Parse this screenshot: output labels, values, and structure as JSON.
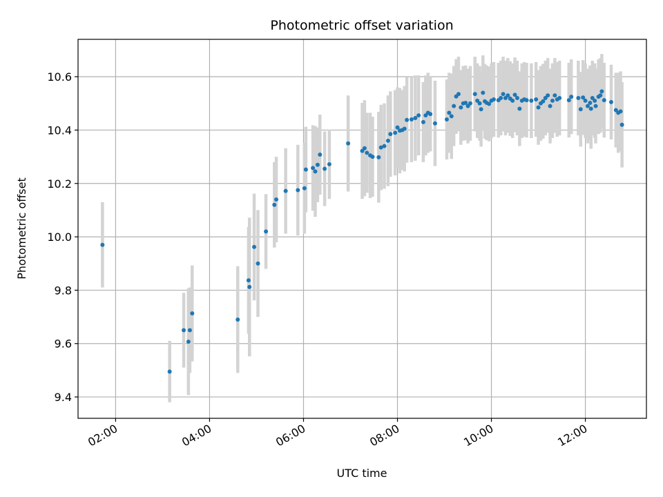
{
  "chart_data": {
    "type": "scatter",
    "title": "Photometric offset variation",
    "xlabel": "UTC time",
    "ylabel": "Photometric offset",
    "xlim": [
      1.2,
      13.3
    ],
    "ylim": [
      9.32,
      10.74
    ],
    "x_ticks": [
      {
        "value": 2,
        "label": "02:00"
      },
      {
        "value": 4,
        "label": "04:00"
      },
      {
        "value": 6,
        "label": "06:00"
      },
      {
        "value": 8,
        "label": "08:00"
      },
      {
        "value": 10,
        "label": "10:00"
      },
      {
        "value": 12,
        "label": "12:00"
      }
    ],
    "y_ticks": [
      {
        "value": 9.4,
        "label": "9.4"
      },
      {
        "value": 9.6,
        "label": "9.6"
      },
      {
        "value": 9.8,
        "label": "9.8"
      },
      {
        "value": 10.0,
        "label": "10.0"
      },
      {
        "value": 10.2,
        "label": "10.2"
      },
      {
        "value": 10.4,
        "label": "10.4"
      },
      {
        "value": 10.6,
        "label": "10.6"
      }
    ],
    "grid": true,
    "colors": {
      "points": "#1f77b4",
      "errorbars": "#d3d3d3"
    },
    "points_hours_value_error": [
      [
        1.72,
        9.97,
        0.16
      ],
      [
        3.15,
        9.495,
        0.115
      ],
      [
        3.45,
        9.65,
        0.14
      ],
      [
        3.55,
        9.607,
        0.2
      ],
      [
        3.58,
        9.65,
        0.16
      ],
      [
        3.63,
        9.713,
        0.18
      ],
      [
        4.6,
        9.69,
        0.2
      ],
      [
        4.83,
        9.837,
        0.2
      ],
      [
        4.85,
        9.812,
        0.26
      ],
      [
        4.95,
        9.962,
        0.2
      ],
      [
        5.03,
        9.9,
        0.2
      ],
      [
        5.2,
        10.02,
        0.14
      ],
      [
        5.38,
        10.12,
        0.16
      ],
      [
        5.42,
        10.14,
        0.16
      ],
      [
        5.62,
        10.172,
        0.16
      ],
      [
        5.88,
        10.175,
        0.17
      ],
      [
        6.02,
        10.182,
        0.17
      ],
      [
        6.05,
        10.252,
        0.16
      ],
      [
        6.2,
        10.258,
        0.16
      ],
      [
        6.25,
        10.245,
        0.17
      ],
      [
        6.3,
        10.27,
        0.14
      ],
      [
        6.35,
        10.308,
        0.15
      ],
      [
        6.45,
        10.255,
        0.14
      ],
      [
        6.55,
        10.272,
        0.13
      ],
      [
        6.95,
        10.35,
        0.18
      ],
      [
        7.25,
        10.322,
        0.18
      ],
      [
        7.3,
        10.332,
        0.18
      ],
      [
        7.35,
        10.315,
        0.15
      ],
      [
        7.42,
        10.305,
        0.16
      ],
      [
        7.47,
        10.3,
        0.15
      ],
      [
        7.6,
        10.298,
        0.17
      ],
      [
        7.65,
        10.335,
        0.16
      ],
      [
        7.72,
        10.34,
        0.16
      ],
      [
        7.8,
        10.36,
        0.17
      ],
      [
        7.85,
        10.385,
        0.16
      ],
      [
        7.95,
        10.39,
        0.16
      ],
      [
        8.0,
        10.41,
        0.15
      ],
      [
        8.05,
        10.398,
        0.16
      ],
      [
        8.1,
        10.4,
        0.15
      ],
      [
        8.15,
        10.405,
        0.16
      ],
      [
        8.2,
        10.438,
        0.16
      ],
      [
        8.3,
        10.44,
        0.16
      ],
      [
        8.38,
        10.445,
        0.16
      ],
      [
        8.45,
        10.455,
        0.15
      ],
      [
        8.55,
        10.43,
        0.15
      ],
      [
        8.6,
        10.455,
        0.15
      ],
      [
        8.65,
        10.465,
        0.15
      ],
      [
        8.7,
        10.46,
        0.14
      ],
      [
        8.8,
        10.425,
        0.16
      ],
      [
        9.05,
        10.44,
        0.15
      ],
      [
        9.1,
        10.465,
        0.15
      ],
      [
        9.15,
        10.452,
        0.16
      ],
      [
        9.2,
        10.49,
        0.15
      ],
      [
        9.25,
        10.526,
        0.14
      ],
      [
        9.3,
        10.535,
        0.14
      ],
      [
        9.35,
        10.485,
        0.14
      ],
      [
        9.4,
        10.5,
        0.14
      ],
      [
        9.45,
        10.502,
        0.14
      ],
      [
        9.5,
        10.49,
        0.14
      ],
      [
        9.55,
        10.5,
        0.14
      ],
      [
        9.65,
        10.535,
        0.14
      ],
      [
        9.7,
        10.51,
        0.14
      ],
      [
        9.75,
        10.5,
        0.14
      ],
      [
        9.78,
        10.478,
        0.14
      ],
      [
        9.82,
        10.54,
        0.14
      ],
      [
        9.86,
        10.508,
        0.14
      ],
      [
        9.9,
        10.502,
        0.14
      ],
      [
        9.95,
        10.498,
        0.14
      ],
      [
        10.0,
        10.51,
        0.14
      ],
      [
        10.05,
        10.515,
        0.14
      ],
      [
        10.15,
        10.512,
        0.14
      ],
      [
        10.2,
        10.52,
        0.14
      ],
      [
        10.25,
        10.535,
        0.14
      ],
      [
        10.3,
        10.52,
        0.14
      ],
      [
        10.35,
        10.53,
        0.14
      ],
      [
        10.4,
        10.518,
        0.14
      ],
      [
        10.45,
        10.51,
        0.14
      ],
      [
        10.5,
        10.532,
        0.14
      ],
      [
        10.55,
        10.52,
        0.14
      ],
      [
        10.6,
        10.48,
        0.14
      ],
      [
        10.65,
        10.51,
        0.14
      ],
      [
        10.7,
        10.515,
        0.14
      ],
      [
        10.75,
        10.512,
        0.14
      ],
      [
        10.85,
        10.51,
        0.14
      ],
      [
        10.95,
        10.515,
        0.14
      ],
      [
        11.0,
        10.485,
        0.14
      ],
      [
        11.05,
        10.5,
        0.14
      ],
      [
        11.1,
        10.508,
        0.14
      ],
      [
        11.15,
        10.52,
        0.14
      ],
      [
        11.2,
        10.53,
        0.14
      ],
      [
        11.25,
        10.49,
        0.14
      ],
      [
        11.3,
        10.51,
        0.14
      ],
      [
        11.35,
        10.53,
        0.14
      ],
      [
        11.4,
        10.515,
        0.14
      ],
      [
        11.45,
        10.52,
        0.14
      ],
      [
        11.65,
        10.512,
        0.14
      ],
      [
        11.7,
        10.525,
        0.14
      ],
      [
        11.85,
        10.52,
        0.14
      ],
      [
        11.9,
        10.478,
        0.14
      ],
      [
        11.95,
        10.522,
        0.14
      ],
      [
        12.0,
        10.51,
        0.14
      ],
      [
        12.05,
        10.49,
        0.14
      ],
      [
        12.1,
        10.502,
        0.14
      ],
      [
        12.12,
        10.48,
        0.15
      ],
      [
        12.15,
        10.52,
        0.14
      ],
      [
        12.2,
        10.51,
        0.14
      ],
      [
        12.22,
        10.49,
        0.14
      ],
      [
        12.28,
        10.525,
        0.14
      ],
      [
        12.32,
        10.53,
        0.14
      ],
      [
        12.35,
        10.545,
        0.14
      ],
      [
        12.4,
        10.512,
        0.14
      ],
      [
        12.55,
        10.505,
        0.14
      ],
      [
        12.65,
        10.475,
        0.14
      ],
      [
        12.7,
        10.465,
        0.15
      ],
      [
        12.75,
        10.47,
        0.15
      ],
      [
        12.78,
        10.42,
        0.16
      ]
    ]
  }
}
